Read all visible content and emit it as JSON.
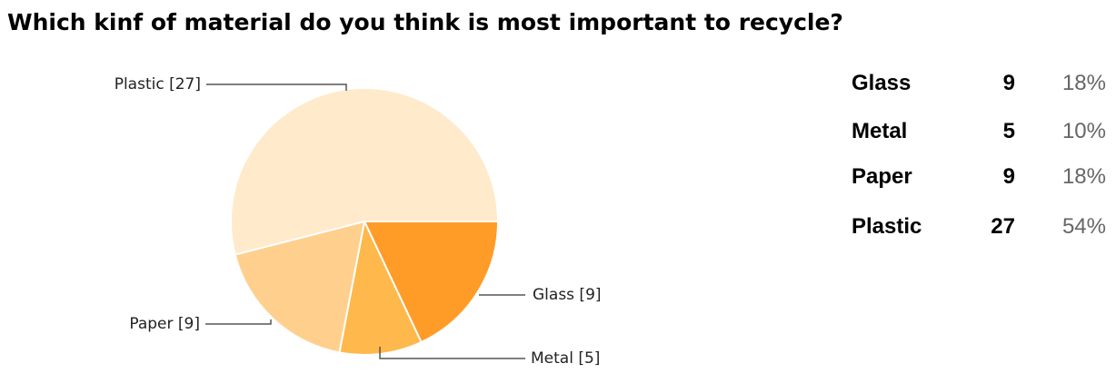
{
  "title": "Which kinf of material do you think is most important to recycle?",
  "chart_data": {
    "type": "pie",
    "title": "Which kinf of material do you think is most important to recycle?",
    "slices": [
      {
        "name": "Glass",
        "value": 9,
        "percent": "18%",
        "label": "Glass [9]",
        "color": "#FF9C27"
      },
      {
        "name": "Metal",
        "value": 5,
        "percent": "10%",
        "label": "Metal [5]",
        "color": "#FFB84B"
      },
      {
        "name": "Paper",
        "value": 9,
        "percent": "18%",
        "label": "Paper [9]",
        "color": "#FFD08D"
      },
      {
        "name": "Plastic",
        "value": 27,
        "percent": "54%",
        "label": "Plastic [27]",
        "color": "#FFEACB"
      }
    ],
    "start_angle_deg": 0,
    "direction": "clockwise"
  },
  "summary": [
    {
      "name": "Glass",
      "count": "9",
      "percent": "18%"
    },
    {
      "name": "Metal",
      "count": "5",
      "percent": "10%"
    },
    {
      "name": "Paper",
      "count": "9",
      "percent": "18%"
    },
    {
      "name": "Plastic",
      "count": "27",
      "percent": "54%"
    }
  ]
}
